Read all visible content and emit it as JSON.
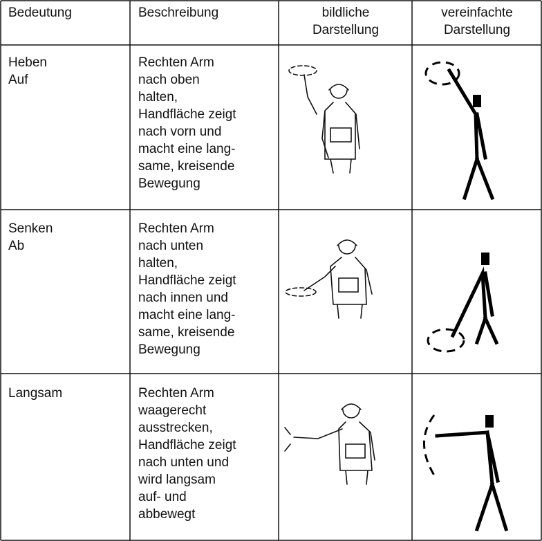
{
  "header": [
    [
      "Bedeutung"
    ],
    [
      "Beschreibung"
    ],
    [
      "bildliche",
      "Darstellung"
    ],
    [
      "vereinfachte",
      "Darstellung"
    ]
  ],
  "rows": [
    {
      "meaning": [
        "Heben",
        "Auf"
      ],
      "description": [
        "Rechten Arm",
        "nach oben",
        "halten,",
        "Handfläche zeigt",
        "nach vorn und",
        "macht eine lang-",
        "same, kreisende",
        "Bewegung"
      ]
    },
    {
      "meaning": [
        "Senken",
        "Ab"
      ],
      "description": [
        "Rechten Arm",
        "nach unten",
        "halten,",
        "Handfläche zeigt",
        "nach innen und",
        "macht eine lang-",
        "same, kreisende",
        "Bewegung"
      ]
    },
    {
      "meaning": [
        "Langsam"
      ],
      "description": [
        "Rechten Arm",
        "waagerecht",
        "ausstrecken,",
        "Handfläche zeigt",
        "nach unten und",
        "wird langsam",
        "auf- und",
        "abbewegt"
      ]
    }
  ]
}
